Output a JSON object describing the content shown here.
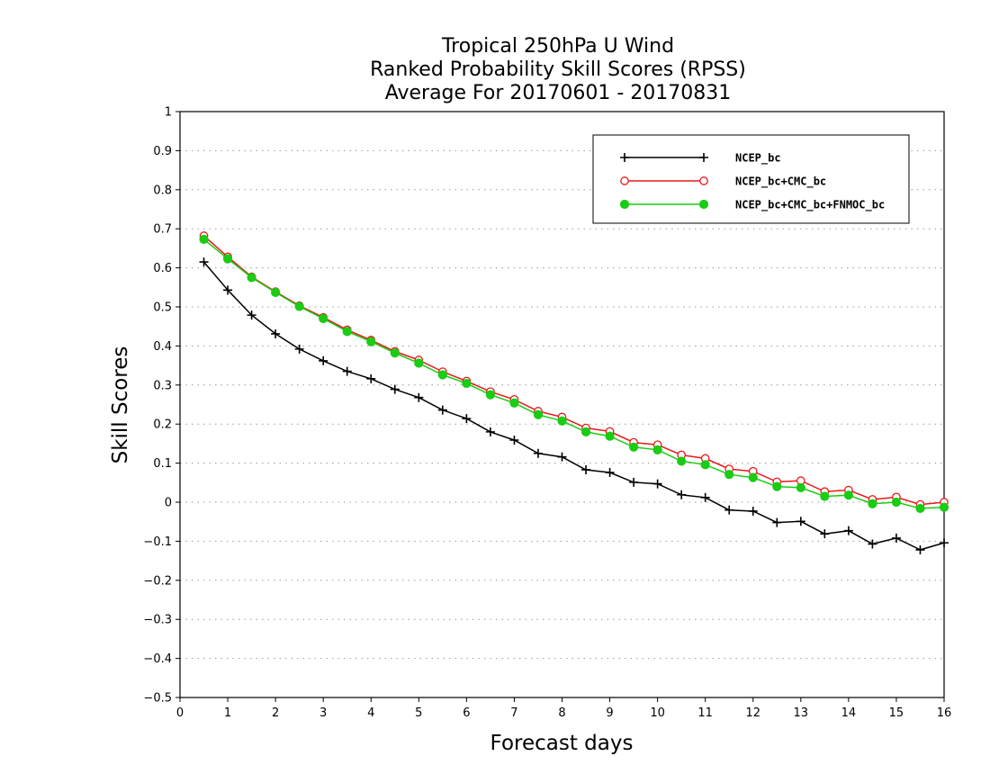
{
  "chart_data": {
    "type": "line",
    "title_lines": [
      "Tropical 250hPa U Wind",
      "Ranked Probability Skill Scores (RPSS)",
      "Average For 20170601 - 20170831"
    ],
    "xlabel": "Forecast days",
    "ylabel": "Skill Scores",
    "xlim": [
      0,
      16
    ],
    "ylim": [
      -0.5,
      1
    ],
    "x_ticks": [
      "0",
      "1",
      "2",
      "3",
      "4",
      "5",
      "6",
      "7",
      "8",
      "9",
      "10",
      "11",
      "12",
      "13",
      "14",
      "15",
      "16"
    ],
    "y_ticks": [
      "1",
      "0.9",
      "0.8",
      "0.7",
      "0.6",
      "0.5",
      "0.4",
      "0.3",
      "0.2",
      "0.1",
      "0",
      "−0.1",
      "−0.2",
      "−0.3",
      "−0.4",
      "−0.5"
    ],
    "grid": "horizontal dotted",
    "legend_position": "top-right",
    "x": [
      0.5,
      1,
      1.5,
      2,
      2.5,
      3,
      3.5,
      4,
      4.5,
      5,
      5.5,
      6,
      6.5,
      7,
      7.5,
      8,
      8.5,
      9,
      9.5,
      10,
      10.5,
      11,
      11.5,
      12,
      12.5,
      13,
      13.5,
      14,
      14.5,
      15,
      15.5,
      16
    ],
    "series": [
      {
        "name": "NCEP_bc",
        "color": "#000000",
        "marker": "plus",
        "values": [
          0.615,
          0.543,
          0.479,
          0.431,
          0.392,
          0.362,
          0.335,
          0.316,
          0.289,
          0.268,
          0.236,
          0.214,
          0.18,
          0.159,
          0.125,
          0.116,
          0.083,
          0.076,
          0.051,
          0.047,
          0.019,
          0.012,
          -0.02,
          -0.023,
          -0.052,
          -0.049,
          -0.081,
          -0.073,
          -0.107,
          -0.092,
          -0.122,
          -0.104
        ]
      },
      {
        "name": "NCEP_bc+CMC_bc",
        "color": "#e8181a",
        "marker": "open-circle",
        "values": [
          0.682,
          0.628,
          0.577,
          0.539,
          0.503,
          0.473,
          0.441,
          0.415,
          0.386,
          0.364,
          0.334,
          0.31,
          0.283,
          0.263,
          0.233,
          0.218,
          0.19,
          0.181,
          0.153,
          0.147,
          0.121,
          0.112,
          0.085,
          0.079,
          0.052,
          0.055,
          0.027,
          0.031,
          0.007,
          0.013,
          -0.006,
          0
        ]
      },
      {
        "name": "NCEP_bc+CMC_bc+FNMOC_bc",
        "color": "#19cc14",
        "marker": "filled-circle",
        "values": [
          0.673,
          0.623,
          0.575,
          0.537,
          0.501,
          0.47,
          0.437,
          0.411,
          0.382,
          0.356,
          0.326,
          0.304,
          0.275,
          0.254,
          0.224,
          0.208,
          0.18,
          0.169,
          0.141,
          0.134,
          0.105,
          0.096,
          0.071,
          0.063,
          0.04,
          0.037,
          0.015,
          0.018,
          -0.004,
          0,
          -0.016,
          -0.013
        ]
      }
    ]
  }
}
